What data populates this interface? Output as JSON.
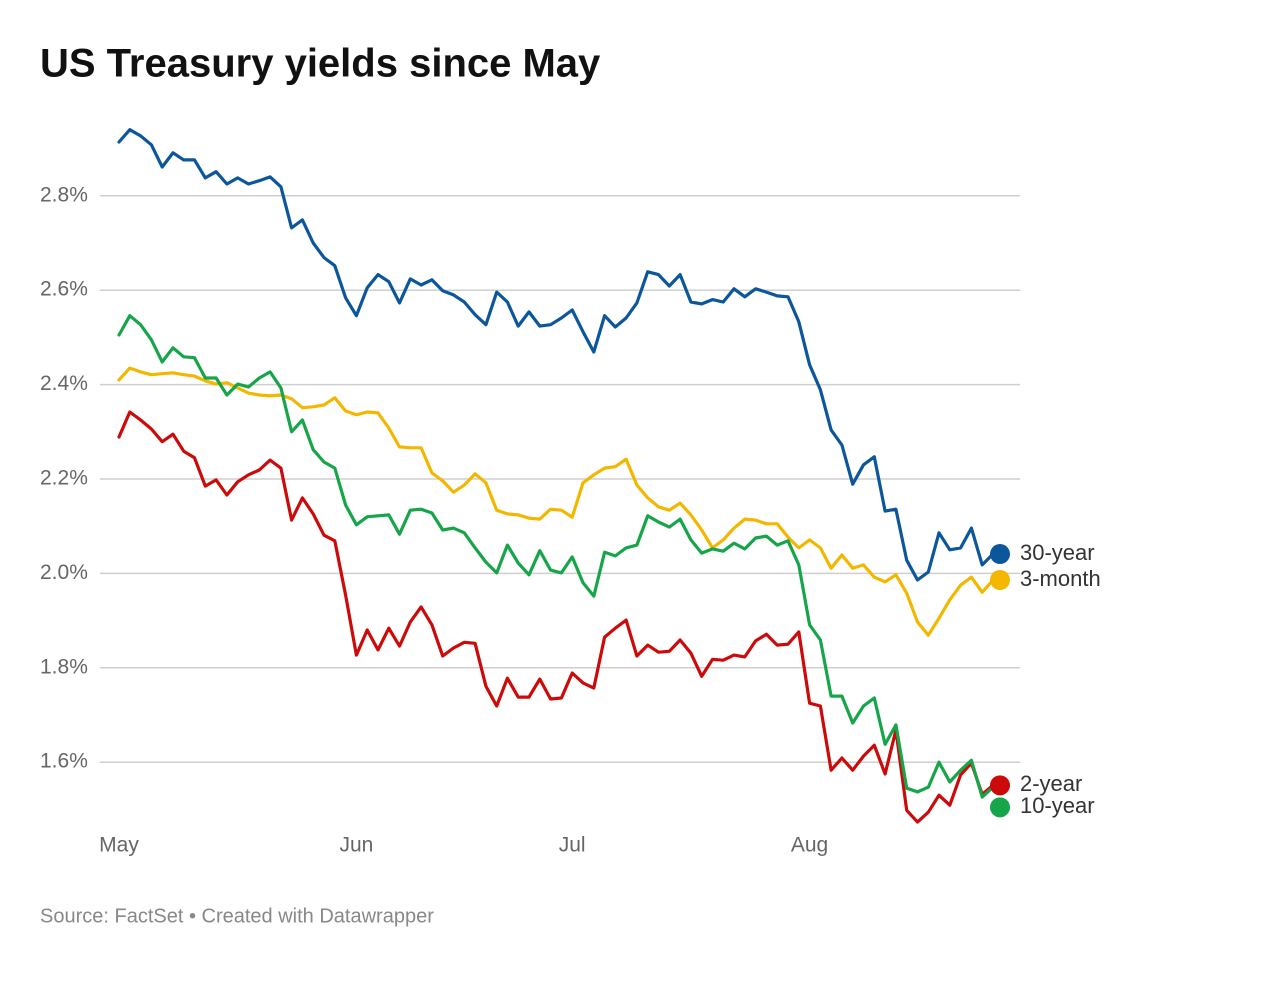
{
  "chart_data": {
    "type": "line",
    "title": "US Treasury yields since May",
    "source": "Source: FactSet • Created with Datawrapper",
    "categories": [
      "May",
      null,
      null,
      null,
      null,
      null,
      null,
      null,
      null,
      null,
      null,
      null,
      null,
      null,
      null,
      null,
      null,
      null,
      null,
      null,
      null,
      null,
      "Jun",
      null,
      null,
      null,
      null,
      null,
      null,
      null,
      null,
      null,
      null,
      null,
      null,
      null,
      null,
      null,
      null,
      null,
      null,
      null,
      "Jul",
      null,
      null,
      null,
      null,
      null,
      null,
      null,
      null,
      null,
      null,
      null,
      null,
      null,
      null,
      null,
      null,
      null,
      null,
      null,
      null,
      null,
      "Aug",
      null,
      null,
      null,
      null,
      null,
      null,
      null,
      null,
      null,
      null,
      null,
      null,
      null,
      null,
      null,
      null,
      null
    ],
    "ylim": [
      1.45,
      2.95
    ],
    "yticks": [
      {
        "value": 1.6,
        "label": "1.6%"
      },
      {
        "value": 1.8,
        "label": "1.8%"
      },
      {
        "value": 2.0,
        "label": "2.0%"
      },
      {
        "value": 2.2,
        "label": "2.2%"
      },
      {
        "value": 2.4,
        "label": "2.4%"
      },
      {
        "value": 2.6,
        "label": "2.6%"
      },
      {
        "value": 2.8,
        "label": "2.8%"
      }
    ],
    "grid": true,
    "legend": "right",
    "series": [
      {
        "name": "3-month",
        "color": "#f3b700",
        "values": [
          2.41,
          2.435,
          2.427,
          2.421,
          2.423,
          2.425,
          2.421,
          2.418,
          2.408,
          2.401,
          2.404,
          2.393,
          2.382,
          2.378,
          2.376,
          2.378,
          2.37,
          2.351,
          2.353,
          2.357,
          2.372,
          2.344,
          2.336,
          2.342,
          2.34,
          2.308,
          2.268,
          2.266,
          2.266,
          2.213,
          2.196,
          2.172,
          2.187,
          2.211,
          2.192,
          2.134,
          2.126,
          2.124,
          2.117,
          2.115,
          2.136,
          2.134,
          2.119,
          2.192,
          2.209,
          2.223,
          2.226,
          2.242,
          2.187,
          2.16,
          2.141,
          2.134,
          2.149,
          2.124,
          2.092,
          2.054,
          2.071,
          2.096,
          2.115,
          2.113,
          2.105,
          2.105,
          2.077,
          2.054,
          2.071,
          2.054,
          2.011,
          2.039,
          2.011,
          2.018,
          1.992,
          1.982,
          1.997,
          1.958,
          1.897,
          1.869,
          1.905,
          1.944,
          1.975,
          1.992,
          1.96,
          1.986
        ]
      },
      {
        "name": "30-year",
        "color": "#0c569b",
        "values": [
          2.914,
          2.94,
          2.927,
          2.908,
          2.861,
          2.891,
          2.876,
          2.876,
          2.838,
          2.851,
          2.825,
          2.838,
          2.825,
          2.832,
          2.84,
          2.819,
          2.732,
          2.749,
          2.7,
          2.669,
          2.652,
          2.584,
          2.546,
          2.605,
          2.633,
          2.618,
          2.573,
          2.624,
          2.611,
          2.622,
          2.599,
          2.59,
          2.575,
          2.548,
          2.527,
          2.596,
          2.575,
          2.524,
          2.554,
          2.524,
          2.527,
          2.541,
          2.558,
          2.512,
          2.469,
          2.546,
          2.522,
          2.541,
          2.573,
          2.639,
          2.633,
          2.609,
          2.633,
          2.575,
          2.571,
          2.58,
          2.575,
          2.603,
          2.586,
          2.603,
          2.596,
          2.588,
          2.586,
          2.533,
          2.442,
          2.389,
          2.304,
          2.272,
          2.189,
          2.23,
          2.247,
          2.132,
          2.136,
          2.028,
          1.986,
          2.003,
          2.086,
          2.05,
          2.054,
          2.096,
          2.018,
          2.041
        ]
      },
      {
        "name": "2-year",
        "color": "#cc0a0a",
        "values": [
          2.289,
          2.342,
          2.325,
          2.306,
          2.279,
          2.295,
          2.259,
          2.245,
          2.185,
          2.198,
          2.166,
          2.194,
          2.209,
          2.219,
          2.24,
          2.223,
          2.113,
          2.16,
          2.126,
          2.081,
          2.069,
          1.954,
          1.827,
          1.88,
          1.838,
          1.884,
          1.846,
          1.897,
          1.929,
          1.891,
          1.825,
          1.842,
          1.854,
          1.852,
          1.761,
          1.719,
          1.778,
          1.738,
          1.738,
          1.776,
          1.734,
          1.736,
          1.789,
          1.768,
          1.757,
          1.865,
          1.884,
          1.901,
          1.825,
          1.848,
          1.833,
          1.835,
          1.859,
          1.831,
          1.782,
          1.818,
          1.816,
          1.827,
          1.823,
          1.857,
          1.871,
          1.848,
          1.85,
          1.876,
          1.725,
          1.719,
          1.583,
          1.609,
          1.583,
          1.613,
          1.636,
          1.575,
          1.668,
          1.498,
          1.473,
          1.494,
          1.53,
          1.509,
          1.573,
          1.598,
          1.532,
          1.551
        ]
      },
      {
        "name": "10-year",
        "color": "#17a54a",
        "values": [
          2.505,
          2.546,
          2.527,
          2.495,
          2.448,
          2.478,
          2.459,
          2.457,
          2.414,
          2.414,
          2.378,
          2.401,
          2.395,
          2.414,
          2.427,
          2.393,
          2.3,
          2.325,
          2.262,
          2.236,
          2.223,
          2.145,
          2.103,
          2.12,
          2.122,
          2.124,
          2.083,
          2.134,
          2.136,
          2.128,
          2.092,
          2.096,
          2.086,
          2.054,
          2.024,
          2.001,
          2.06,
          2.022,
          1.997,
          2.048,
          2.007,
          2.001,
          2.035,
          1.98,
          1.952,
          2.045,
          2.037,
          2.054,
          2.06,
          2.122,
          2.109,
          2.098,
          2.115,
          2.071,
          2.043,
          2.052,
          2.047,
          2.064,
          2.052,
          2.075,
          2.079,
          2.06,
          2.069,
          2.018,
          1.891,
          1.859,
          1.74,
          1.74,
          1.683,
          1.719,
          1.736,
          1.638,
          1.679,
          1.545,
          1.537,
          1.547,
          1.6,
          1.558,
          1.583,
          1.604,
          1.526,
          1.547
        ]
      }
    ]
  }
}
